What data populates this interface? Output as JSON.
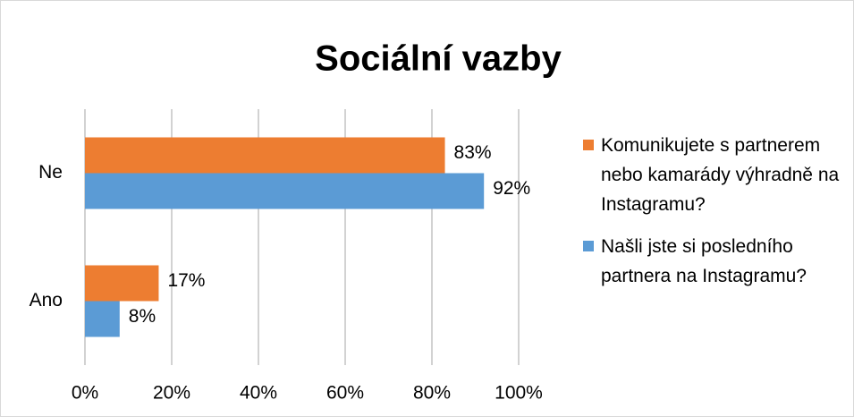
{
  "chart_data": {
    "type": "bar",
    "orientation": "horizontal",
    "title": "Sociální vazby",
    "categories": [
      "Ano",
      "Ne"
    ],
    "series": [
      {
        "name": "Komunikujete s partnerem nebo kamarády výhradně na Instagramu?",
        "color": "#ed7d31",
        "values": [
          17,
          83
        ],
        "value_labels": [
          "17%",
          "83%"
        ]
      },
      {
        "name": "Našli jste si posledního partnera na Instagramu?",
        "color": "#5b9bd5",
        "values": [
          8,
          92
        ],
        "value_labels": [
          "8%",
          "92%"
        ]
      }
    ],
    "xlim": [
      0,
      100
    ],
    "xticks": [
      {
        "value": 0,
        "label": "0%"
      },
      {
        "value": 20,
        "label": "20%"
      },
      {
        "value": 40,
        "label": "40%"
      },
      {
        "value": 60,
        "label": "60%"
      },
      {
        "value": 80,
        "label": "80%"
      },
      {
        "value": 100,
        "label": "100%"
      }
    ],
    "grid": true,
    "legend": "right"
  }
}
